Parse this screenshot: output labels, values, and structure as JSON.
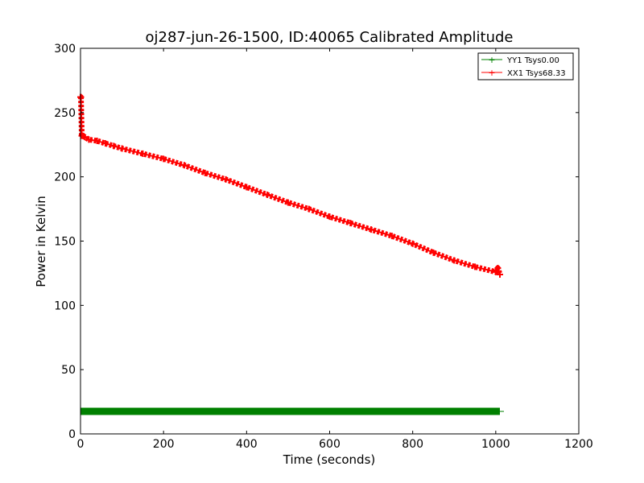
{
  "chart_data": {
    "type": "line",
    "title": "oj287-jun-26-1500, ID:40065 Calibrated Amplitude",
    "xlabel": "Time (seconds)",
    "ylabel": "Power in Kelvin",
    "xlim": [
      0,
      1200
    ],
    "ylim": [
      0,
      300
    ],
    "xticks": [
      0,
      200,
      400,
      600,
      800,
      1000,
      1200
    ],
    "yticks": [
      0,
      50,
      100,
      150,
      200,
      250,
      300
    ],
    "grid": false,
    "legend_position": "top-right",
    "series": [
      {
        "name": "YY1 Tsys0.00",
        "color": "#008000",
        "marker": "+",
        "x": [
          0,
          100,
          200,
          300,
          400,
          500,
          600,
          700,
          800,
          900,
          1000,
          1010
        ],
        "y": [
          17.5,
          17.5,
          17.5,
          17.5,
          17.5,
          17.5,
          17.5,
          17.5,
          17.5,
          17.5,
          17.5,
          17.5
        ]
      },
      {
        "name": "XX1 Tsys68.33",
        "color": "#ff0000",
        "marker": "+",
        "x": [
          0,
          1,
          3,
          5,
          10,
          20,
          40,
          60,
          80,
          100,
          150,
          200,
          250,
          300,
          350,
          400,
          450,
          500,
          550,
          600,
          650,
          700,
          750,
          800,
          850,
          900,
          950,
          1000,
          1005,
          1010
        ],
        "y": [
          262,
          262,
          232,
          232,
          231,
          229,
          228,
          226,
          224,
          222,
          218,
          214,
          209,
          203,
          198,
          192,
          186,
          180,
          175,
          169,
          164,
          159,
          154,
          148,
          141,
          135,
          130,
          126,
          129,
          124
        ]
      }
    ]
  }
}
